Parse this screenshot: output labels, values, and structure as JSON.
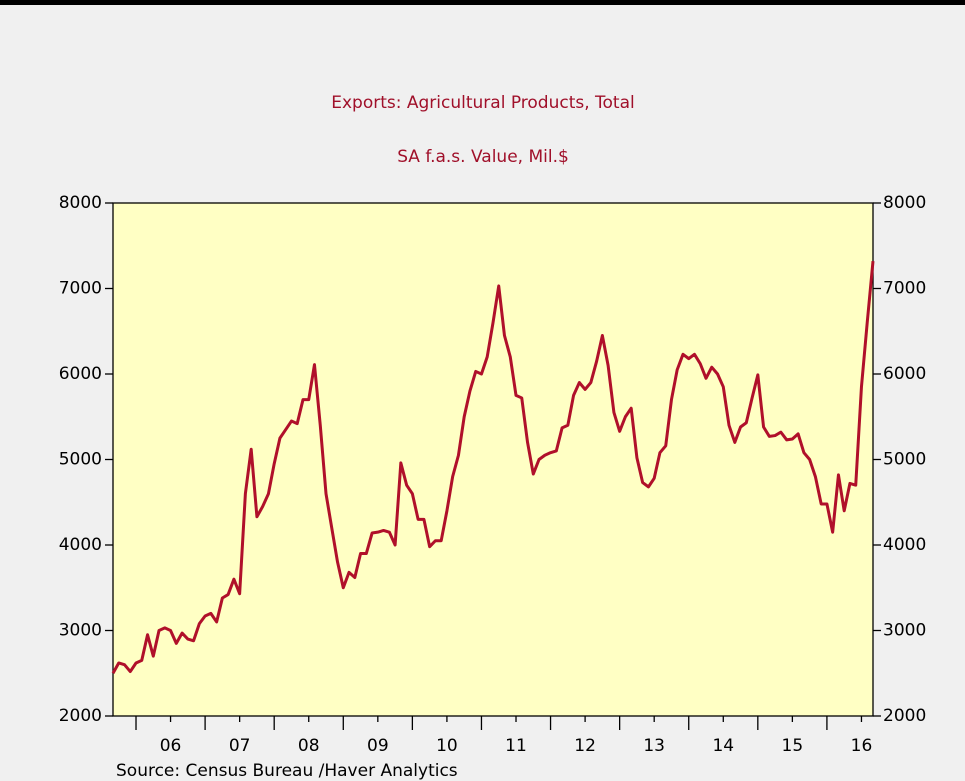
{
  "chart_data": {
    "type": "line",
    "title": "Exports: Agricultural Products, Total",
    "subtitle": "SA   f.a.s. Value, Mil.$",
    "source": "Source:  Census Bureau /Haver Analytics",
    "x": [
      2005.667,
      2005.75,
      2005.833,
      2005.917,
      2006,
      2006.083,
      2006.167,
      2006.25,
      2006.333,
      2006.417,
      2006.5,
      2006.583,
      2006.667,
      2006.75,
      2006.833,
      2006.917,
      2007,
      2007.083,
      2007.167,
      2007.25,
      2007.333,
      2007.417,
      2007.5,
      2007.583,
      2007.667,
      2007.75,
      2007.833,
      2007.917,
      2008,
      2008.083,
      2008.167,
      2008.25,
      2008.333,
      2008.417,
      2008.5,
      2008.583,
      2008.667,
      2008.75,
      2008.833,
      2008.917,
      2009,
      2009.083,
      2009.167,
      2009.25,
      2009.333,
      2009.417,
      2009.5,
      2009.583,
      2009.667,
      2009.75,
      2009.833,
      2009.917,
      2010,
      2010.083,
      2010.167,
      2010.25,
      2010.333,
      2010.417,
      2010.5,
      2010.583,
      2010.667,
      2010.75,
      2010.833,
      2010.917,
      2011,
      2011.083,
      2011.167,
      2011.25,
      2011.333,
      2011.417,
      2011.5,
      2011.583,
      2011.667,
      2011.75,
      2011.833,
      2011.917,
      2012,
      2012.083,
      2012.167,
      2012.25,
      2012.333,
      2012.417,
      2012.5,
      2012.583,
      2012.667,
      2012.75,
      2012.833,
      2012.917,
      2013,
      2013.083,
      2013.167,
      2013.25,
      2013.333,
      2013.417,
      2013.5,
      2013.583,
      2013.667,
      2013.75,
      2013.833,
      2013.917,
      2014,
      2014.083,
      2014.167,
      2014.25,
      2014.333,
      2014.417,
      2014.5,
      2014.583,
      2014.667,
      2014.75,
      2014.833,
      2014.917,
      2015,
      2015.083,
      2015.167,
      2015.25,
      2015.333,
      2015.417,
      2015.5,
      2015.583,
      2015.667,
      2015.75,
      2015.833,
      2015.917,
      2016,
      2016.083,
      2016.167,
      2016.25,
      2016.333,
      2016.417,
      2016.5,
      2016.583,
      2016.667
    ],
    "series": [
      {
        "name": "Exports: Agricultural Products, Total",
        "color": "#b0102a",
        "values": [
          2500,
          2620,
          2600,
          2520,
          2620,
          2650,
          2950,
          2700,
          3000,
          3030,
          3000,
          2850,
          2970,
          2900,
          2880,
          3080,
          3170,
          3200,
          3100,
          3380,
          3420,
          3600,
          3430,
          4600,
          5120,
          4330,
          4450,
          4600,
          4950,
          5250,
          5350,
          5450,
          5420,
          5700,
          5700,
          6110,
          5400,
          4600,
          4200,
          3800,
          3500,
          3680,
          3620,
          3900,
          3900,
          4140,
          4150,
          4170,
          4150,
          4000,
          4960,
          4700,
          4600,
          4300,
          4300,
          3980,
          4050,
          4050,
          4400,
          4800,
          5050,
          5500,
          5800,
          6030,
          6000,
          6200,
          6600,
          7030,
          6450,
          6200,
          5750,
          5720,
          5200,
          4830,
          5000,
          5050,
          5080,
          5100,
          5370,
          5400,
          5750,
          5900,
          5820,
          5900,
          6150,
          6450,
          6100,
          5550,
          5330,
          5500,
          5600,
          5020,
          4730,
          4680,
          4780,
          5080,
          5160,
          5700,
          6050,
          6230,
          6180,
          6230,
          6120,
          5950,
          6080,
          6000,
          5850,
          5400,
          5200,
          5380,
          5430,
          5720,
          5990,
          5380,
          5270,
          5280,
          5320,
          5230,
          5240,
          5300,
          5080,
          5000,
          4800,
          4480,
          4480,
          4150,
          4820,
          4400,
          4720,
          4700,
          5850,
          6600,
          7320
        ]
      }
    ],
    "xlim": [
      2005.667,
      2016.667
    ],
    "xticks": [
      {
        "value": 2006.5,
        "label": "06"
      },
      {
        "value": 2007.5,
        "label": "07"
      },
      {
        "value": 2008.5,
        "label": "08"
      },
      {
        "value": 2009.5,
        "label": "09"
      },
      {
        "value": 2010.5,
        "label": "10"
      },
      {
        "value": 2011.5,
        "label": "11"
      },
      {
        "value": 2012.5,
        "label": "12"
      },
      {
        "value": 2013.5,
        "label": "13"
      },
      {
        "value": 2014.5,
        "label": "14"
      },
      {
        "value": 2015.5,
        "label": "15"
      },
      {
        "value": 2016.5,
        "label": "16"
      }
    ],
    "xticks_minor": [
      2006,
      2007,
      2008,
      2009,
      2010,
      2011,
      2012,
      2013,
      2014,
      2015,
      2016
    ],
    "ylim": [
      2000,
      8000
    ],
    "yticks": [
      2000,
      3000,
      4000,
      5000,
      6000,
      7000,
      8000
    ],
    "plot_background": "#ffffc4",
    "text_color": "#a0102a"
  }
}
